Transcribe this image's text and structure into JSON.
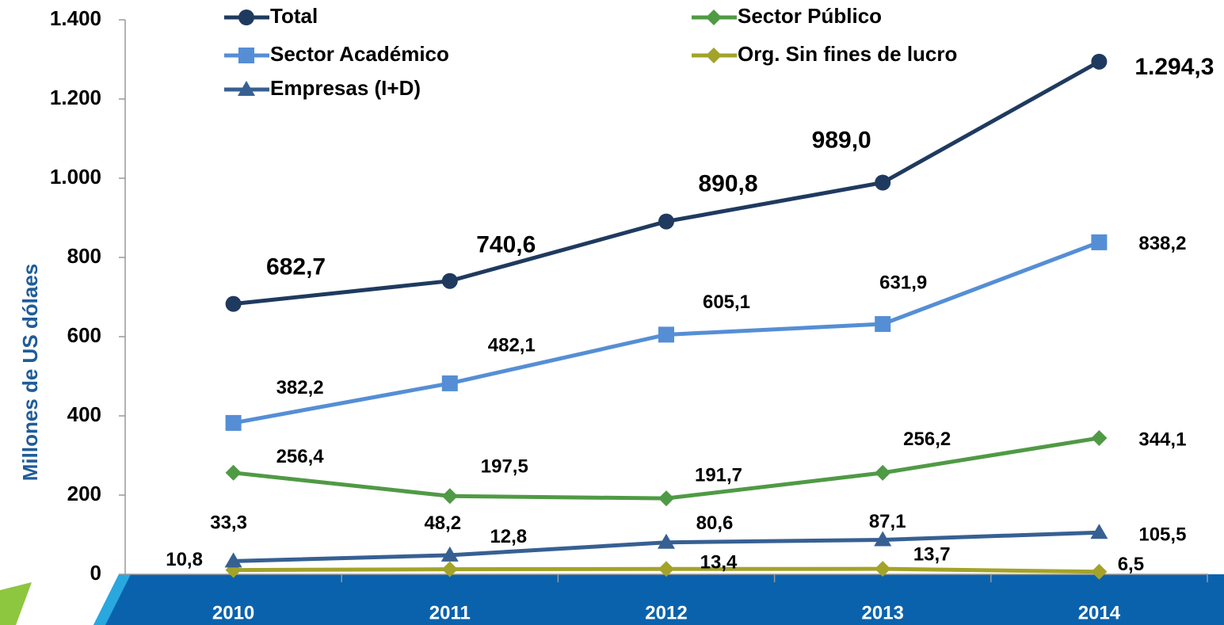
{
  "chart_data": {
    "type": "line",
    "y_label": "Millones de US dólaes",
    "categories": [
      "2010",
      "2011",
      "2012",
      "2013",
      "2014"
    ],
    "ylim": [
      0,
      1400
    ],
    "yticks": [
      0,
      200,
      400,
      600,
      800,
      {
        "value": 1000,
        "label": "1.000"
      },
      {
        "value": 1200,
        "label": "1.200"
      },
      {
        "value": 1400,
        "label": "1.400"
      }
    ],
    "series": [
      {
        "name": "Total",
        "color": "#1f3a5f",
        "marker": "circle",
        "values": [
          682.7,
          740.6,
          890.8,
          989.0,
          1294.3
        ],
        "value_labels": [
          "682,7",
          "740,6",
          "890,8",
          "989,0",
          "1.294,3"
        ]
      },
      {
        "name": "Sector Público",
        "color": "#4f9a44",
        "marker": "diamond",
        "values": [
          256.4,
          197.5,
          191.7,
          256.2,
          344.1
        ],
        "value_labels": [
          "256,4",
          "197,5",
          "191,7",
          "256,2",
          "344,1"
        ]
      },
      {
        "name": "Sector Académico",
        "color": "#558ed5",
        "marker": "square",
        "values": [
          382.2,
          482.1,
          605.1,
          631.9,
          838.2
        ],
        "value_labels": [
          "382,2",
          "482,1",
          "605,1",
          "631,9",
          "838,2"
        ]
      },
      {
        "name": "Org. Sin fines de lucro",
        "color": "#a3a32a",
        "marker": "diamond",
        "values": [
          10.8,
          12.8,
          13.4,
          13.7,
          6.5
        ],
        "value_labels": [
          "10,8",
          "12,8",
          "13,4",
          "13,7",
          "6,5"
        ]
      },
      {
        "name": "Empresas (I+D)",
        "color": "#376092",
        "marker": "triangle",
        "values": [
          33.3,
          48.2,
          80.6,
          87.1,
          105.5
        ],
        "value_labels": [
          "33,3",
          "48,2",
          "80,6",
          "87,1",
          "105,5"
        ]
      }
    ]
  }
}
